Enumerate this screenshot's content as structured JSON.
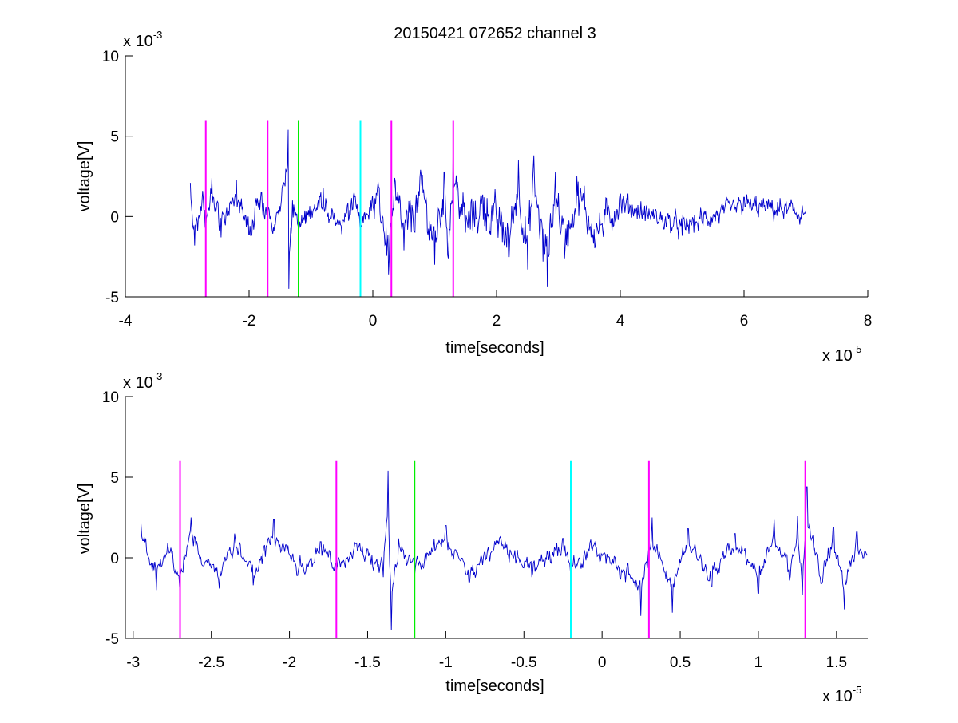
{
  "figure": {
    "title": "20150421 072652 channel 3"
  },
  "chart_data": [
    {
      "type": "line",
      "title": "20150421 072652 channel 3",
      "xlabel": "time[seconds]",
      "ylabel": "voltage[V]",
      "x_multiplier_label": "x 10",
      "x_multiplier_exp": "-5",
      "y_multiplier_label": "x 10",
      "y_multiplier_exp": "-3",
      "xlim": [
        -4,
        8
      ],
      "ylim": [
        -5,
        10
      ],
      "x_ticks": [
        -4,
        -2,
        0,
        2,
        4,
        6,
        8
      ],
      "x_tick_labels": [
        "-4",
        "-2",
        "0",
        "2",
        "4",
        "6",
        "8"
      ],
      "y_ticks": [
        -5,
        0,
        5,
        10
      ],
      "y_tick_labels": [
        "-5",
        "0",
        "5",
        "10"
      ],
      "grid": false,
      "series": [
        {
          "color": "#0000cc",
          "x_range": [
            -2.95,
            7.0
          ],
          "anchors": [
            [
              -2.95,
              2.1
            ],
            [
              -2.88,
              -1.8
            ],
            [
              -2.75,
              1.6
            ],
            [
              -2.7,
              -0.8
            ],
            [
              -2.6,
              2.4
            ],
            [
              -2.45,
              -1.3
            ],
            [
              -2.2,
              2.3
            ],
            [
              -2.0,
              -1.1
            ],
            [
              -1.8,
              1.5
            ],
            [
              -1.6,
              -0.9
            ],
            [
              -1.37,
              5.4
            ],
            [
              -1.36,
              -4.5
            ],
            [
              -1.3,
              1.0
            ],
            [
              -1.2,
              -0.9
            ],
            [
              -0.8,
              1.8
            ],
            [
              -0.5,
              -1.1
            ],
            [
              -0.3,
              1.5
            ],
            [
              -0.2,
              -1.0
            ],
            [
              0.1,
              1.8
            ],
            [
              0.25,
              -3.6
            ],
            [
              0.35,
              2.4
            ],
            [
              0.5,
              -2.1
            ],
            [
              0.8,
              2.6
            ],
            [
              1.0,
              -3.0
            ],
            [
              1.15,
              2.8
            ],
            [
              1.22,
              -2.6
            ],
            [
              1.3,
              4.5
            ],
            [
              1.5,
              -1.0
            ],
            [
              1.8,
              1.2
            ],
            [
              2.2,
              -2.5
            ],
            [
              2.35,
              3.5
            ],
            [
              2.5,
              -3.3
            ],
            [
              2.6,
              3.8
            ],
            [
              2.75,
              -2.8
            ],
            [
              2.82,
              -4.4
            ],
            [
              2.95,
              2.8
            ],
            [
              3.1,
              -2.6
            ],
            [
              3.3,
              2.5
            ],
            [
              3.6,
              -1.8
            ],
            [
              4.0,
              1.4
            ],
            [
              5.0,
              -1.2
            ],
            [
              6.0,
              1.2
            ],
            [
              7.0,
              0.4
            ]
          ],
          "noise_amplitude": [
            [
              -2.95,
              1.1
            ],
            [
              0.0,
              1.1
            ],
            [
              0.2,
              2.0
            ],
            [
              3.5,
              2.0
            ],
            [
              4.2,
              1.0
            ],
            [
              7.0,
              1.0
            ]
          ]
        }
      ],
      "markers": [
        {
          "x": -2.7,
          "color": "#ff00ff",
          "ymin": -5,
          "ymax": 6
        },
        {
          "x": -1.7,
          "color": "#ff00ff",
          "ymin": -5,
          "ymax": 6
        },
        {
          "x": -1.2,
          "color": "#00ee00",
          "ymin": -5,
          "ymax": 6
        },
        {
          "x": -0.2,
          "color": "#00ffff",
          "ymin": -5,
          "ymax": 6
        },
        {
          "x": 0.3,
          "color": "#ff00ff",
          "ymin": -5,
          "ymax": 6
        },
        {
          "x": 1.3,
          "color": "#ff00ff",
          "ymin": -5,
          "ymax": 6
        }
      ]
    },
    {
      "type": "line",
      "title": "",
      "xlabel": "time[seconds]",
      "ylabel": "voltage[V]",
      "x_multiplier_label": "x 10",
      "x_multiplier_exp": "-5",
      "y_multiplier_label": "x 10",
      "y_multiplier_exp": "-3",
      "xlim": [
        -3.05,
        1.7
      ],
      "ylim": [
        -5,
        10
      ],
      "x_ticks": [
        -3,
        -2.5,
        -2,
        -1.5,
        -1,
        -0.5,
        0,
        0.5,
        1,
        1.5
      ],
      "x_tick_labels": [
        "-3",
        "-2.5",
        "-2",
        "-1.5",
        "-1",
        "-0.5",
        "0",
        "0.5",
        "1",
        "1.5"
      ],
      "y_ticks": [
        -5,
        0,
        5,
        10
      ],
      "y_tick_labels": [
        "-5",
        "0",
        "5",
        "10"
      ],
      "grid": false,
      "series": [
        {
          "color": "#0000cc",
          "x_range": [
            -2.95,
            1.7
          ],
          "anchors": [
            [
              -2.95,
              2.1
            ],
            [
              -2.92,
              1.2
            ],
            [
              -2.85,
              -2.0
            ],
            [
              -2.78,
              0.9
            ],
            [
              -2.7,
              -2.0
            ],
            [
              -2.63,
              2.5
            ],
            [
              -2.55,
              -0.5
            ],
            [
              -2.45,
              -1.9
            ],
            [
              -2.35,
              1.5
            ],
            [
              -2.23,
              -1.7
            ],
            [
              -2.1,
              2.4
            ],
            [
              -1.95,
              -1.1
            ],
            [
              -1.8,
              1.0
            ],
            [
              -1.7,
              -0.8
            ],
            [
              -1.55,
              0.9
            ],
            [
              -1.4,
              -1.2
            ],
            [
              -1.37,
              5.4
            ],
            [
              -1.35,
              -4.5
            ],
            [
              -1.3,
              1.2
            ],
            [
              -1.2,
              -1.0
            ],
            [
              -1.0,
              2.0
            ],
            [
              -0.85,
              -1.5
            ],
            [
              -0.65,
              1.3
            ],
            [
              -0.45,
              -1.2
            ],
            [
              -0.25,
              1.2
            ],
            [
              -0.2,
              -1.0
            ],
            [
              -0.05,
              0.8
            ],
            [
              0.15,
              -1.5
            ],
            [
              0.25,
              -3.6
            ],
            [
              0.32,
              2.5
            ],
            [
              0.45,
              -3.4
            ],
            [
              0.55,
              1.8
            ],
            [
              0.7,
              -1.8
            ],
            [
              0.85,
              1.5
            ],
            [
              1.0,
              -2.2
            ],
            [
              1.1,
              2.4
            ],
            [
              1.2,
              -1.4
            ],
            [
              1.25,
              2.6
            ],
            [
              1.28,
              -2.3
            ],
            [
              1.31,
              4.4
            ],
            [
              1.4,
              -1.6
            ],
            [
              1.48,
              1.9
            ],
            [
              1.55,
              -3.2
            ],
            [
              1.63,
              1.6
            ],
            [
              1.7,
              0.2
            ]
          ],
          "noise_amplitude": [
            [
              -2.95,
              0.8
            ],
            [
              1.7,
              0.8
            ]
          ]
        }
      ],
      "markers": [
        {
          "x": -2.7,
          "color": "#ff00ff",
          "ymin": -5,
          "ymax": 6
        },
        {
          "x": -1.7,
          "color": "#ff00ff",
          "ymin": -5,
          "ymax": 6
        },
        {
          "x": -1.2,
          "color": "#00ee00",
          "ymin": -5,
          "ymax": 6
        },
        {
          "x": -0.2,
          "color": "#00ffff",
          "ymin": -5,
          "ymax": 6
        },
        {
          "x": 0.3,
          "color": "#ff00ff",
          "ymin": -5,
          "ymax": 6
        },
        {
          "x": 1.3,
          "color": "#ff00ff",
          "ymin": -5,
          "ymax": 6
        }
      ]
    }
  ]
}
